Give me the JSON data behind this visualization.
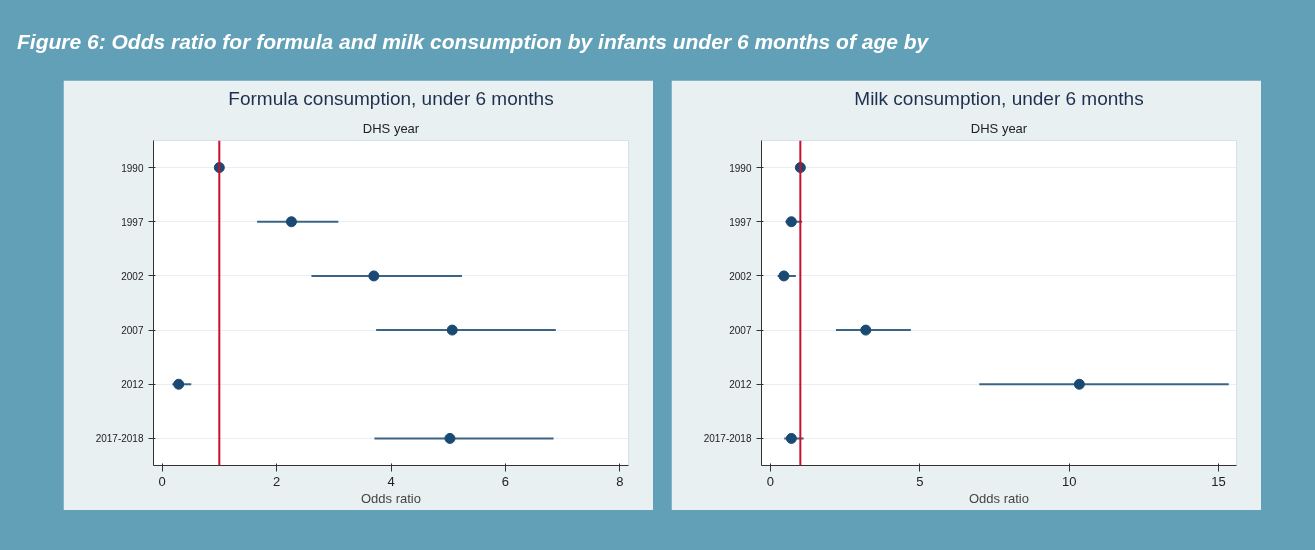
{
  "chart_data": [
    {
      "type": "scatter",
      "orientation": "horizontal",
      "annotations": [
        "Figure 6: Odds ratio for formula and milk consumption by infants under 6 months of age by"
      ],
      "title": "Formula consumption, under 6 months",
      "subtitle": "DHS year",
      "xlabel": "Odds ratio",
      "categories": [
        "1990",
        "1997",
        "2002",
        "2007",
        "2012",
        "2017-2018"
      ],
      "values": [
        1.0,
        2.26,
        3.7,
        5.07,
        0.29,
        5.03
      ],
      "errors": [
        null,
        [
          1.66,
          3.08
        ],
        [
          2.61,
          5.24
        ],
        [
          3.74,
          6.88
        ],
        [
          0.18,
          0.51
        ],
        [
          3.71,
          6.84
        ]
      ],
      "color": "#1a4a73",
      "marker": "circle",
      "grid": "y",
      "xlim": [
        -0.15,
        8.15
      ],
      "xticks": [
        0,
        2,
        4,
        6,
        8
      ],
      "ref_lines": [
        {
          "axis": "x",
          "value": 1,
          "color": "#c8102e"
        }
      ]
    },
    {
      "type": "scatter",
      "orientation": "horizontal",
      "title": "Milk consumption, under 6 months",
      "subtitle": "DHS year",
      "xlabel": "Odds ratio",
      "categories": [
        "1990",
        "1997",
        "2002",
        "2007",
        "2012",
        "2017-2018"
      ],
      "values": [
        1.0,
        0.7,
        0.45,
        3.19,
        10.34,
        0.7
      ],
      "errors": [
        null,
        [
          0.5,
          1.06
        ],
        [
          0.24,
          0.85
        ],
        [
          2.19,
          4.7
        ],
        [
          6.99,
          15.34
        ],
        [
          0.46,
          1.11
        ]
      ],
      "color": "#1a4a73",
      "marker": "circle",
      "grid": "y",
      "xlim": [
        -0.3,
        15.6
      ],
      "xticks": [
        0,
        5,
        10,
        15
      ],
      "ref_lines": [
        {
          "axis": "x",
          "value": 1,
          "color": "#c8102e"
        }
      ]
    }
  ]
}
